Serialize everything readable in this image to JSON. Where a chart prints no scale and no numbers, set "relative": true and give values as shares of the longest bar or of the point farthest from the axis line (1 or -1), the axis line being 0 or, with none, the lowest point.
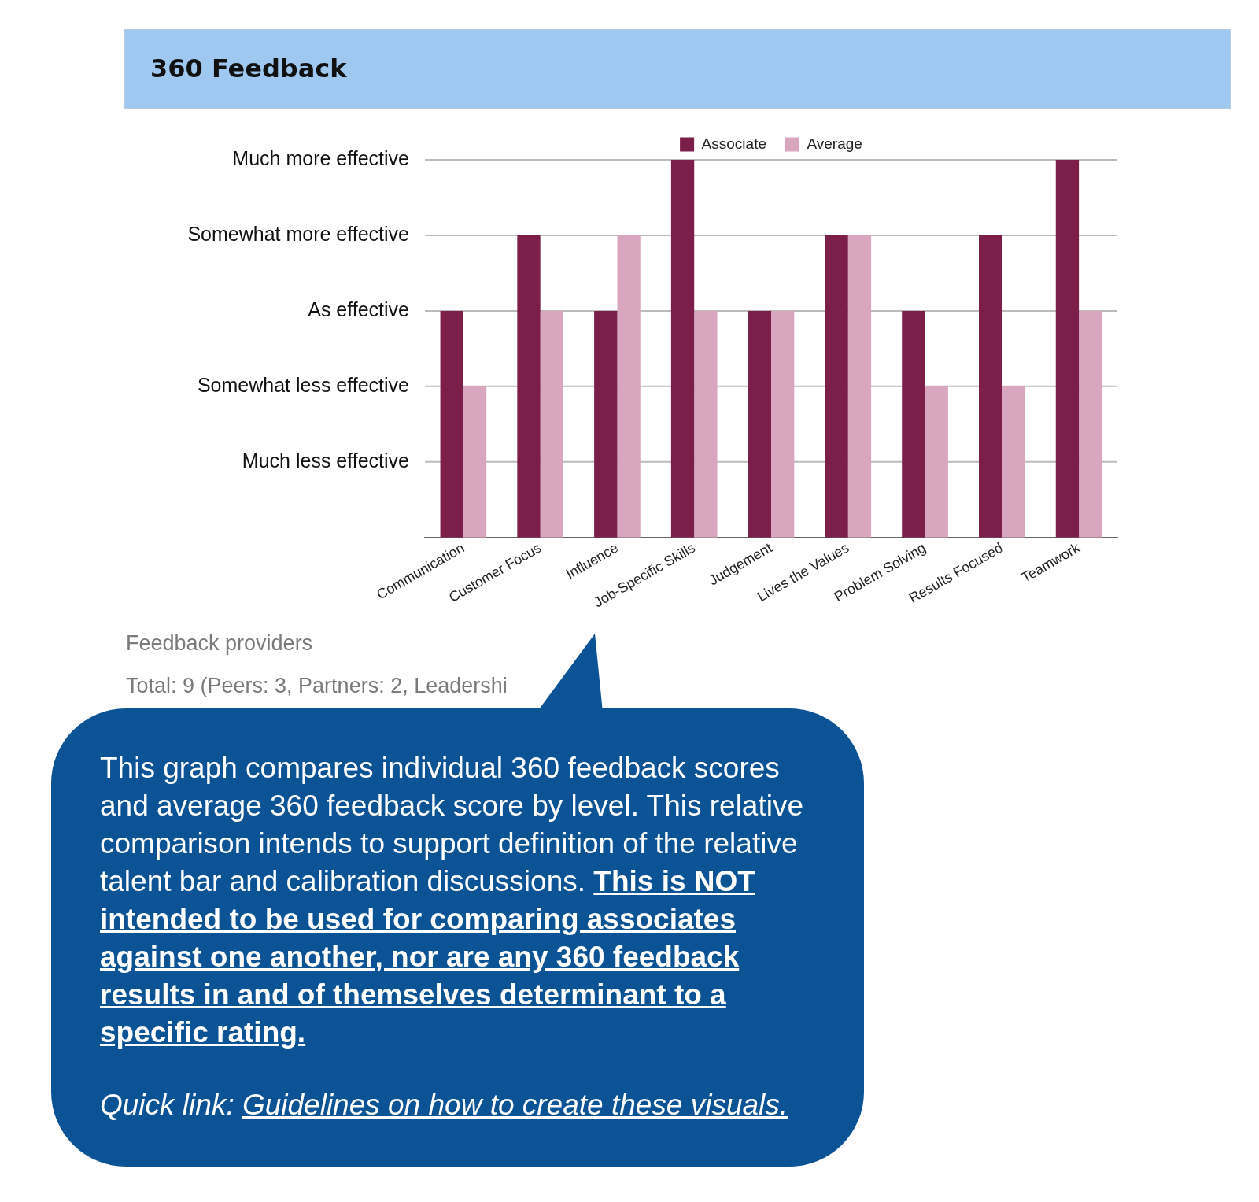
{
  "chart_data": {
    "type": "bar",
    "title": "360 Feedback",
    "categories": [
      "Communication",
      "Customer Focus",
      "Influence",
      "Job-Specific Skills",
      "Judgement",
      "Lives the Values",
      "Problem Solving",
      "Results Focused",
      "Teamwork"
    ],
    "series": [
      {
        "name": "Associate",
        "color": "#7b1f4a",
        "values": [
          0.6,
          0.8,
          0.6,
          1,
          0.6,
          0.8,
          0.6,
          0.8,
          1
        ]
      },
      {
        "name": "Average",
        "color": "#d8a7bf",
        "values": [
          0.4,
          0.6,
          0.8,
          0.6,
          0.6,
          0.8,
          0.4,
          0.4,
          0.6
        ]
      }
    ],
    "relative": true,
    "ref_lines": [
      {
        "axis": "y",
        "value": 0.2,
        "label": "Much less effective"
      },
      {
        "axis": "y",
        "value": 0.4,
        "label": "Somewhat less effective"
      },
      {
        "axis": "y",
        "value": 0.6,
        "label": "As effective"
      },
      {
        "axis": "y",
        "value": 0.8,
        "label": "Somewhat more effective"
      },
      {
        "axis": "y",
        "value": 1,
        "label": "Much more effective"
      }
    ],
    "legend": "top",
    "annotations": [
      "Feedback providers",
      "Total: 9 (Peers: 3,  Partners: 2,  Leadershi",
      "This graph compares individual 360 feedback scores and average 360 feedback score by level. This relative comparison intends to support definition of the relative talent bar and calibration discussions.",
      "This is NOT intended to be used for comparing associates against one another, nor are any 360 feedback results in and of themselves determinant to a specific rating.",
      "Quick link: Guidelines on how to create these visuals."
    ]
  }
}
